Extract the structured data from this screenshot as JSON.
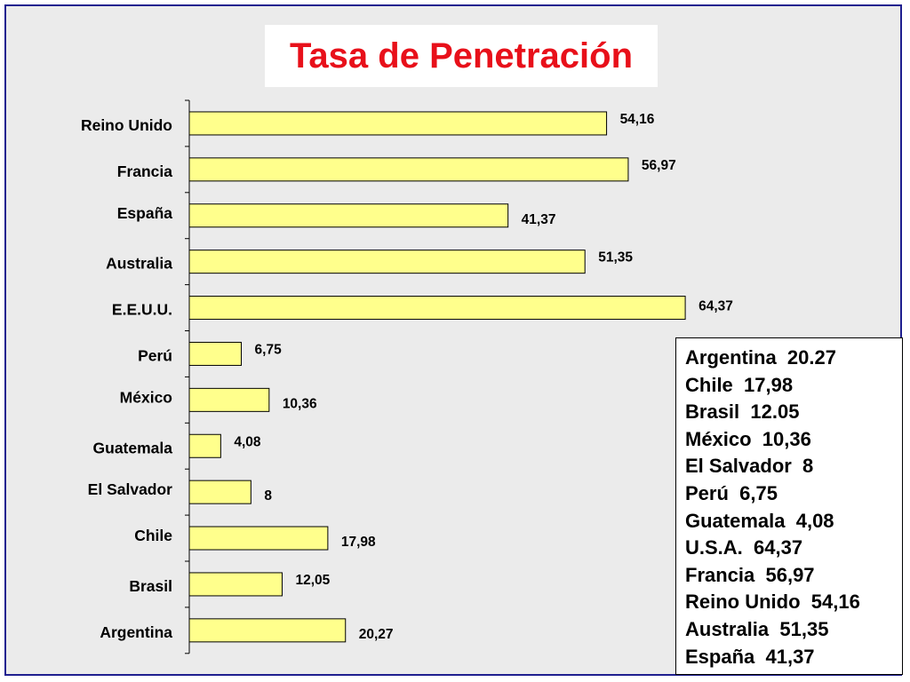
{
  "title": "Tasa de Penetración",
  "colors": {
    "bar_fill": "#ffff8c",
    "bar_stroke": "#000000",
    "title": "#e8101a",
    "border": "#1f1f8f",
    "background": "#ebebeb"
  },
  "chart_data": {
    "type": "bar",
    "orientation": "horizontal",
    "title": "Tasa de Penetración",
    "categories": [
      "Reino Unido",
      "Francia",
      "España",
      "Australia",
      "E.E.U.U.",
      "Perú",
      "México",
      "Guatemala",
      "El Salvador",
      "Chile",
      "Brasil",
      "Argentina"
    ],
    "values": [
      54.16,
      56.97,
      41.37,
      51.35,
      64.37,
      6.75,
      10.36,
      4.08,
      8,
      17.98,
      12.05,
      20.27
    ],
    "value_labels": [
      "54,16",
      "56,97",
      "41,37",
      "51,35",
      "64,37",
      "6,75",
      "10,36",
      "4,08",
      "8",
      "17,98",
      "12,05",
      "20,27"
    ],
    "xlabel": "",
    "ylabel": "",
    "xlim": [
      0,
      70
    ],
    "grid": false
  },
  "legend_lines": [
    "Argentina  20.27",
    "Chile  17,98",
    "Brasil  12.05",
    "México  10,36",
    "El Salvador  8",
    "Perú  6,75",
    "Guatemala  4,08",
    "U.S.A.  64,37",
    "Francia  56,97",
    "Reino Unido  54,16",
    "Australia  51,35",
    "España  41,37"
  ]
}
